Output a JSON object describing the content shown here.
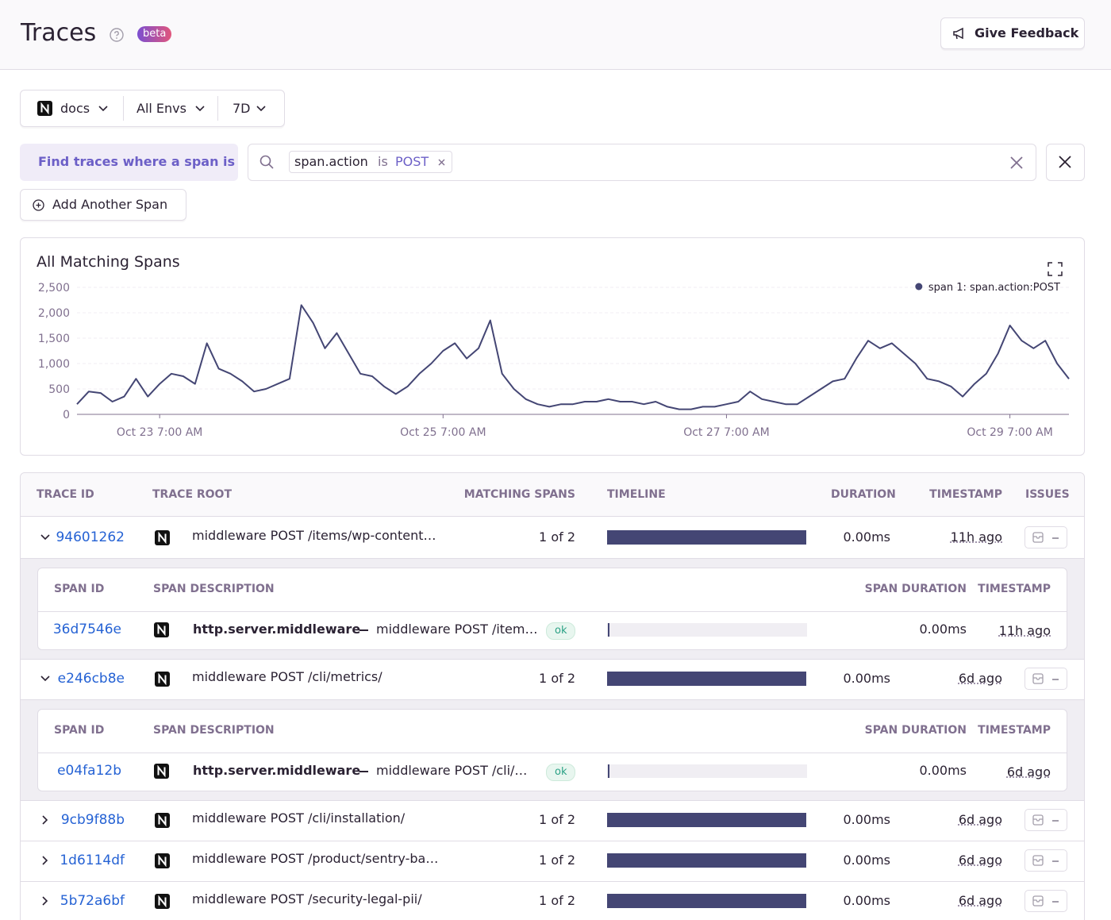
{
  "header": {
    "title": "Traces",
    "badge": "beta",
    "feedback": "Give Feedback"
  },
  "filters": {
    "project": "docs",
    "env": "All Envs",
    "period": "7D"
  },
  "search": {
    "label": "Find traces where a span is",
    "key": "span.action",
    "op": "is",
    "value": "POST"
  },
  "add_span": "Add Another Span",
  "chart_data": {
    "type": "line",
    "title": "All Matching Spans",
    "x": [
      -14,
      -12,
      -10,
      -8,
      -6,
      -4,
      -2,
      0,
      2,
      4,
      6,
      8,
      10,
      12,
      14,
      16,
      18,
      20,
      22,
      24,
      26,
      28,
      30,
      32,
      34,
      36,
      38,
      40,
      42,
      44,
      46,
      48,
      50,
      52,
      54,
      56,
      58,
      60,
      62,
      64,
      66,
      68,
      70,
      72,
      74,
      76,
      78,
      80,
      82,
      84,
      86,
      88,
      90,
      92,
      94,
      96,
      98,
      100,
      102,
      104,
      106,
      108,
      110,
      112,
      114,
      116,
      118,
      120,
      122,
      124,
      126,
      128,
      130,
      132,
      134,
      136,
      138,
      140,
      142,
      144,
      146,
      148,
      150,
      152,
      154
    ],
    "series": [
      {
        "name": "span 1: span.action:POST",
        "color": "#444674",
        "values": [
          200,
          450,
          420,
          250,
          350,
          700,
          350,
          600,
          800,
          750,
          600,
          1400,
          900,
          800,
          650,
          450,
          500,
          600,
          700,
          2150,
          1800,
          1300,
          1600,
          1200,
          800,
          750,
          550,
          400,
          550,
          800,
          1000,
          1250,
          1400,
          1100,
          1300,
          1850,
          800,
          500,
          300,
          200,
          150,
          200,
          200,
          250,
          250,
          300,
          250,
          250,
          200,
          250,
          150,
          100,
          100,
          150,
          150,
          200,
          250,
          450,
          300,
          250,
          200,
          200,
          350,
          500,
          650,
          700,
          1100,
          1450,
          1300,
          1400,
          1200,
          1000,
          700,
          650,
          550,
          350,
          600,
          800,
          1200,
          1750,
          1450,
          1300,
          1450,
          1000,
          700
        ]
      }
    ],
    "xlim": [
      -14,
      154
    ],
    "xticks": [
      {
        "value": 0,
        "label": "Oct 23 7:00 AM"
      },
      {
        "value": 48,
        "label": "Oct 25 7:00 AM"
      },
      {
        "value": 96,
        "label": "Oct 27 7:00 AM"
      },
      {
        "value": 144,
        "label": "Oct 29 7:00 AM"
      }
    ],
    "ylim": [
      0,
      2500
    ],
    "yticks": [
      0,
      500,
      {
        "value": 1000,
        "label": "1,000"
      },
      {
        "value": 1500,
        "label": "1,500"
      },
      {
        "value": 2000,
        "label": "2,000"
      },
      {
        "value": 2500,
        "label": "2,500"
      }
    ],
    "grid": true,
    "legend": "top-right"
  },
  "table": {
    "columns": [
      "TRACE ID",
      "TRACE ROOT",
      "MATCHING SPANS",
      "TIMELINE",
      "DURATION",
      "TIMESTAMP",
      "ISSUES"
    ],
    "rows": [
      {
        "id": "94601262",
        "root": "middleware POST /items/wp-content/plugins/",
        "matching": "1 of 2",
        "duration": "0.00ms",
        "timestamp": "11h ago",
        "spans": {
          "columns": [
            "SPAN ID",
            "SPAN DESCRIPTION",
            "SPAN DURATION",
            "TIMESTAMP"
          ],
          "rows": [
            {
              "id": "36d7546e",
              "op": "http.server.middleware",
              "description": "middleware POST /items/wp-content/plugins/",
              "status": "ok",
              "duration": "0.00ms",
              "timestamp": "11h ago"
            }
          ]
        }
      },
      {
        "id": "e246cb8e",
        "root": "middleware POST /cli/metrics/",
        "matching": "1 of 2",
        "duration": "0.00ms",
        "timestamp": "6d ago",
        "spans": {
          "columns": [
            "SPAN ID",
            "SPAN DESCRIPTION",
            "SPAN DURATION",
            "TIMESTAMP"
          ],
          "rows": [
            {
              "id": "e04fa12b",
              "op": "http.server.middleware",
              "description": "middleware POST /cli/metrics/",
              "status": "ok",
              "duration": "0.00ms",
              "timestamp": "6d ago"
            }
          ]
        }
      },
      {
        "id": "9cb9f88b",
        "root": "middleware POST /cli/installation/",
        "matching": "1 of 2",
        "duration": "0.00ms",
        "timestamp": "6d ago"
      },
      {
        "id": "1d6114df",
        "root": "middleware POST /product/sentry-basics/",
        "matching": "1 of 2",
        "duration": "0.00ms",
        "timestamp": "6d ago"
      },
      {
        "id": "5b72a6bf",
        "root": "middleware POST /security-legal-pii/",
        "matching": "1 of 2",
        "duration": "0.00ms",
        "timestamp": "6d ago"
      }
    ]
  }
}
